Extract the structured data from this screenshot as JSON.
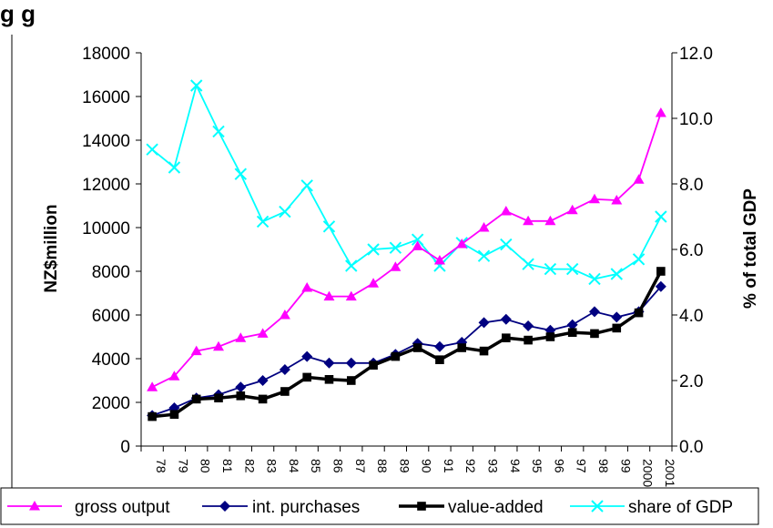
{
  "chart_data": {
    "type": "line",
    "title": "",
    "heading_fragment": "g      g",
    "xlabel": "",
    "ylabel": "NZ$million",
    "ylabel_right": "% of total GDP",
    "ylim": [
      0,
      18000
    ],
    "yticks": [
      "0",
      "2000",
      "4000",
      "6000",
      "8000",
      "10000",
      "12000",
      "14000",
      "16000",
      "18000"
    ],
    "ylim_right": [
      0,
      12
    ],
    "yticks_right": [
      "0.0",
      "2.0",
      "4.0",
      "6.0",
      "8.0",
      "10.0",
      "12.0"
    ],
    "grid": false,
    "legend_position": "bottom",
    "categories": [
      "78",
      "79",
      "80",
      "81",
      "82",
      "83",
      "84",
      "85",
      "86",
      "87",
      "88",
      "89",
      "90",
      "91",
      "92",
      "93",
      "94",
      "95",
      "96",
      "97",
      "98",
      "99",
      "2000",
      "2001"
    ],
    "series": [
      {
        "name": "gross output",
        "axis": "left",
        "color": "#ff00ff",
        "marker": "triangle",
        "values": [
          2700,
          3200,
          4350,
          4550,
          4950,
          5150,
          6000,
          7250,
          6850,
          6850,
          7450,
          8200,
          9150,
          8500,
          9250,
          10000,
          10750,
          10300,
          10300,
          10800,
          11300,
          11250,
          12200,
          15250
        ]
      },
      {
        "name": "int. purchases",
        "axis": "left",
        "color": "#000080",
        "marker": "diamond",
        "values": [
          1400,
          1750,
          2200,
          2350,
          2700,
          3000,
          3500,
          4100,
          3800,
          3800,
          3800,
          4200,
          4700,
          4550,
          4750,
          5650,
          5800,
          5500,
          5300,
          5550,
          6150,
          5900,
          6150,
          7300
        ]
      },
      {
        "name": "value-added",
        "axis": "left",
        "color": "#000000",
        "marker": "square",
        "values": [
          1350,
          1450,
          2150,
          2200,
          2300,
          2150,
          2500,
          3150,
          3050,
          3000,
          3700,
          4100,
          4500,
          3950,
          4500,
          4350,
          4950,
          4850,
          5000,
          5200,
          5150,
          5400,
          6100,
          8000
        ]
      },
      {
        "name": "share of GDP",
        "axis": "right",
        "color": "#00ffff",
        "marker": "x",
        "values": [
          9.05,
          8.5,
          11.0,
          9.6,
          8.3,
          6.85,
          7.15,
          7.95,
          6.7,
          5.5,
          6.0,
          6.05,
          6.3,
          5.5,
          6.2,
          5.8,
          6.15,
          5.55,
          5.4,
          5.4,
          5.1,
          5.25,
          5.7,
          7.0
        ]
      }
    ]
  },
  "colors": {
    "gross_output": "#ff00ff",
    "int_purchases": "#000080",
    "value_added": "#000000",
    "share_of_gdp": "#00ffff"
  }
}
